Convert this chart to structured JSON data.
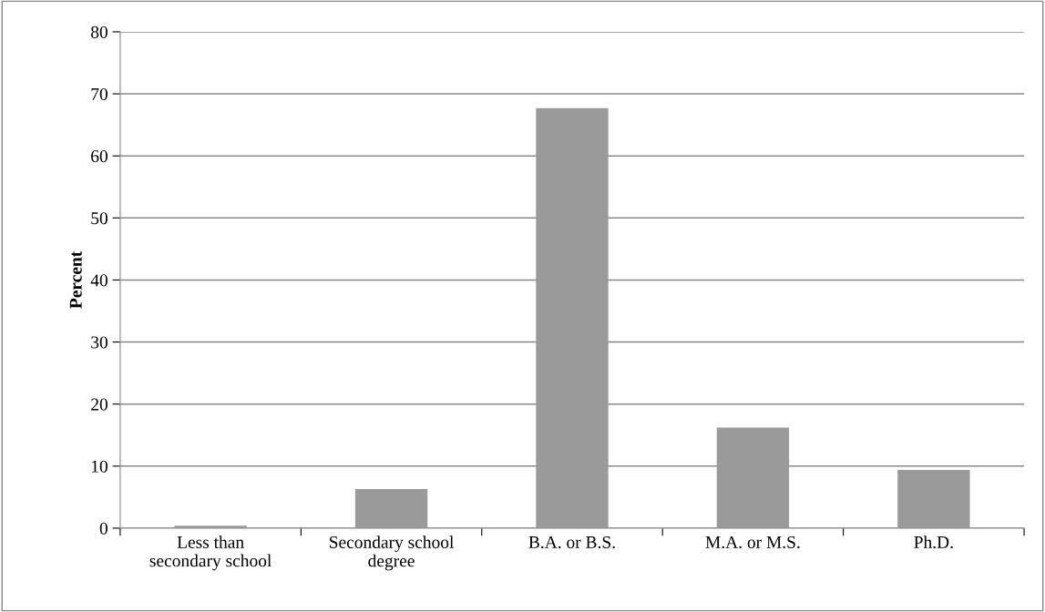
{
  "chart_data": {
    "type": "bar",
    "ylabel": "Percent",
    "categories": [
      "Less than\nsecondary school",
      "Secondary school\ndegree",
      "B.A. or B.S.",
      "M.A. or M.S.",
      "Ph.D."
    ],
    "values": [
      0.4,
      6.3,
      67.7,
      16.2,
      9.4
    ],
    "color": "#9a9a9a",
    "ylim": [
      0,
      80
    ],
    "yticks": [
      0,
      10,
      20,
      30,
      40,
      50,
      60,
      70,
      80
    ],
    "grid": "y",
    "legend": false
  }
}
